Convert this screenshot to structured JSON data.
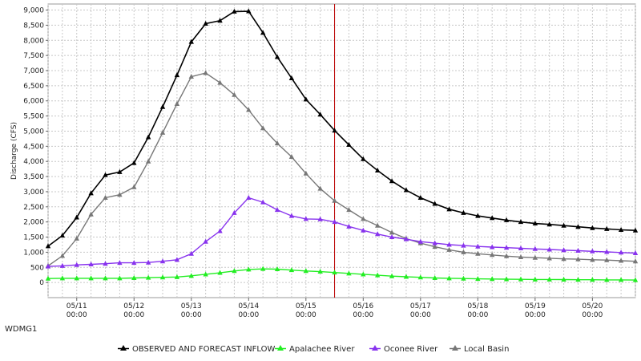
{
  "chart_data": {
    "type": "line",
    "title": "",
    "xlabel": "",
    "ylabel": "Discharge (CFS)",
    "station": "WDMG1",
    "ylim": [
      -500,
      9200
    ],
    "yticks": [
      0,
      500,
      1000,
      1500,
      2000,
      2500,
      3000,
      3500,
      4000,
      4500,
      5000,
      5500,
      6000,
      6500,
      7000,
      7500,
      8000,
      8500,
      9000
    ],
    "ytick_labels": [
      "0",
      "500",
      "1,000",
      "1,500",
      "2,000",
      "2,500",
      "3,000",
      "3,500",
      "4,000",
      "4,500",
      "5,000",
      "5,500",
      "6,000",
      "6,500",
      "7,000",
      "7,500",
      "8,000",
      "8,500",
      "9,000"
    ],
    "xlim": [
      0,
      10.25
    ],
    "xticks": [
      {
        "day": "05/11",
        "time": "00:00",
        "x": 0.5
      },
      {
        "day": "05/12",
        "time": "00:00",
        "x": 1.5
      },
      {
        "day": "05/13",
        "time": "00:00",
        "x": 2.5
      },
      {
        "day": "05/14",
        "time": "00:00",
        "x": 3.5
      },
      {
        "day": "05/15",
        "time": "00:00",
        "x": 4.5
      },
      {
        "day": "05/16",
        "time": "00:00",
        "x": 5.5
      },
      {
        "day": "05/17",
        "time": "00:00",
        "x": 6.5
      },
      {
        "day": "05/18",
        "time": "00:00",
        "x": 7.5
      },
      {
        "day": "05/19",
        "time": "00:00",
        "x": 8.5
      },
      {
        "day": "05/20",
        "time": "00:00",
        "x": 9.5
      }
    ],
    "now_x": 5.0,
    "grid": true,
    "legend_position": "bottom",
    "series": [
      {
        "name": "OBSERVED AND FORECAST INFLOW",
        "color": "#000000",
        "marker_color": "#000000",
        "x": [
          0,
          0.25,
          0.5,
          0.75,
          1.0,
          1.25,
          1.5,
          1.75,
          2.0,
          2.25,
          2.5,
          2.75,
          3.0,
          3.25,
          3.5,
          3.75,
          4.0,
          4.25,
          4.5,
          4.75,
          5.0,
          5.25,
          5.5,
          5.75,
          6.0,
          6.25,
          6.5,
          6.75,
          7.0,
          7.25,
          7.5,
          7.75,
          8.0,
          8.25,
          8.5,
          8.75,
          9.0,
          9.25,
          9.5,
          9.75,
          10.0,
          10.25
        ],
        "values": [
          1200,
          1550,
          2150,
          2950,
          3550,
          3650,
          3950,
          4800,
          5800,
          6850,
          7950,
          8550,
          8650,
          8950,
          8960,
          8250,
          7450,
          6750,
          6050,
          5550,
          5020,
          4550,
          4080,
          3700,
          3350,
          3050,
          2800,
          2600,
          2420,
          2300,
          2200,
          2130,
          2060,
          2000,
          1950,
          1920,
          1880,
          1840,
          1800,
          1770,
          1740,
          1720
        ]
      },
      {
        "name": "Apalachee River",
        "color": "#22ee22",
        "marker_color": "#22ee22",
        "x": [
          0,
          0.25,
          0.5,
          0.75,
          1.0,
          1.25,
          1.5,
          1.75,
          2.0,
          2.25,
          2.5,
          2.75,
          3.0,
          3.25,
          3.5,
          3.75,
          4.0,
          4.25,
          4.5,
          4.75,
          5.0,
          5.25,
          5.5,
          5.75,
          6.0,
          6.25,
          6.5,
          6.75,
          7.0,
          7.25,
          7.5,
          7.75,
          8.0,
          8.25,
          8.5,
          8.75,
          9.0,
          9.25,
          9.5,
          9.75,
          10.0,
          10.25
        ],
        "values": [
          130,
          140,
          140,
          140,
          140,
          140,
          150,
          160,
          170,
          180,
          220,
          270,
          320,
          380,
          430,
          450,
          440,
          410,
          380,
          360,
          330,
          300,
          270,
          240,
          210,
          190,
          170,
          150,
          140,
          130,
          120,
          115,
          110,
          105,
          100,
          98,
          95,
          92,
          90,
          87,
          85,
          80
        ]
      },
      {
        "name": "Oconee River",
        "color": "#8833ee",
        "marker_color": "#8833ee",
        "x": [
          0,
          0.25,
          0.5,
          0.75,
          1.0,
          1.25,
          1.5,
          1.75,
          2.0,
          2.25,
          2.5,
          2.75,
          3.0,
          3.25,
          3.5,
          3.75,
          4.0,
          4.25,
          4.5,
          4.75,
          5.0,
          5.25,
          5.5,
          5.75,
          6.0,
          6.25,
          6.5,
          6.75,
          7.0,
          7.25,
          7.5,
          7.75,
          8.0,
          8.25,
          8.5,
          8.75,
          9.0,
          9.25,
          9.5,
          9.75,
          10.0,
          10.25
        ],
        "values": [
          530,
          550,
          580,
          600,
          620,
          650,
          650,
          660,
          700,
          750,
          950,
          1350,
          1700,
          2300,
          2800,
          2650,
          2400,
          2200,
          2100,
          2090,
          2000,
          1850,
          1720,
          1600,
          1500,
          1430,
          1350,
          1300,
          1250,
          1220,
          1190,
          1170,
          1150,
          1130,
          1110,
          1090,
          1070,
          1050,
          1030,
          1010,
          990,
          970
        ]
      },
      {
        "name": "Local Basin",
        "color": "#777777",
        "marker_color": "#777777",
        "x": [
          0,
          0.25,
          0.5,
          0.75,
          1.0,
          1.25,
          1.5,
          1.75,
          2.0,
          2.25,
          2.5,
          2.75,
          3.0,
          3.25,
          3.5,
          3.75,
          4.0,
          4.25,
          4.5,
          4.75,
          5.0,
          5.25,
          5.5,
          5.75,
          6.0,
          6.25,
          6.5,
          6.75,
          7.0,
          7.25,
          7.5,
          7.75,
          8.0,
          8.25,
          8.5,
          8.75,
          9.0,
          9.25,
          9.5,
          9.75,
          10.0,
          10.25
        ],
        "values": [
          550,
          880,
          1450,
          2250,
          2800,
          2900,
          3150,
          4000,
          4950,
          5900,
          6800,
          6920,
          6600,
          6200,
          5700,
          5100,
          4600,
          4150,
          3600,
          3100,
          2700,
          2400,
          2100,
          1880,
          1650,
          1450,
          1300,
          1180,
          1080,
          1000,
          950,
          910,
          870,
          840,
          820,
          800,
          780,
          770,
          750,
          740,
          720,
          700
        ]
      }
    ]
  }
}
